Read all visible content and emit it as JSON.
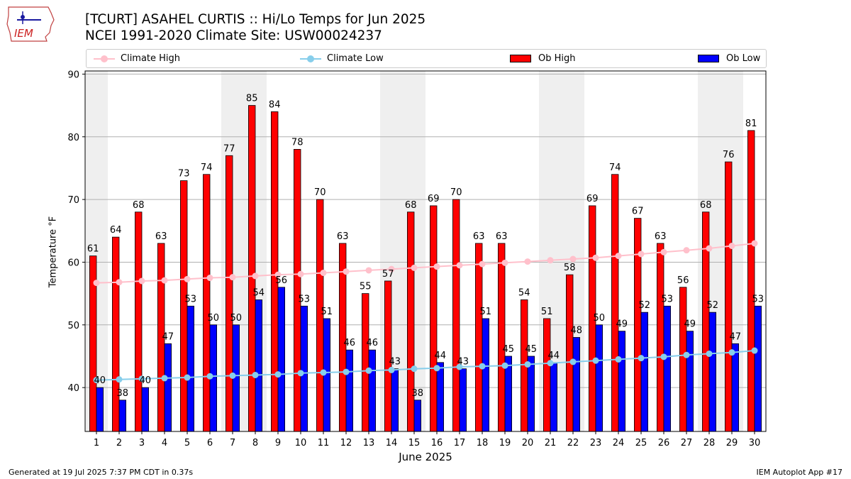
{
  "header": {
    "logo_text": "IEM",
    "title": "[TCURT] ASAHEL CURTIS  :: Hi/Lo Temps for Jun 2025",
    "subtitle": "NCEI 1991-2020 Climate Site: USW00024237"
  },
  "footer": {
    "generated": "Generated at 19 Jul 2025 7:37 PM CDT in 0.37s",
    "app": "IEM Autoplot App #17"
  },
  "legend": {
    "climate_high": "Climate High",
    "climate_low": "Climate Low",
    "ob_high": "Ob High",
    "ob_low": "Ob Low"
  },
  "colors": {
    "ob_high": "#ff0000",
    "ob_low": "#0000ff",
    "climate_high": "#ffc0cb",
    "climate_low": "#87ceeb",
    "weekend_shade": "#efefef",
    "grid": "#b0b0b0"
  },
  "chart_data": {
    "type": "bar",
    "xlabel": "June 2025",
    "ylabel": "Temperature °F",
    "ylim": [
      33,
      90.5
    ],
    "yticks": [
      40,
      50,
      60,
      70,
      80,
      90
    ],
    "grid": "horizontal",
    "legend_position": "top",
    "categories": [
      "1",
      "2",
      "3",
      "4",
      "5",
      "6",
      "7",
      "8",
      "9",
      "10",
      "11",
      "12",
      "13",
      "14",
      "15",
      "16",
      "17",
      "18",
      "19",
      "20",
      "21",
      "22",
      "23",
      "24",
      "25",
      "26",
      "27",
      "28",
      "29",
      "30"
    ],
    "weekend_days": [
      1,
      7,
      8,
      14,
      15,
      21,
      22,
      28,
      29
    ],
    "series": [
      {
        "name": "Ob High",
        "kind": "bar",
        "values": [
          61,
          64,
          68,
          63,
          73,
          74,
          77,
          85,
          84,
          78,
          70,
          63,
          55,
          57,
          68,
          69,
          70,
          63,
          63,
          54,
          51,
          58,
          69,
          74,
          67,
          63,
          56,
          68,
          76,
          81
        ]
      },
      {
        "name": "Ob Low",
        "kind": "bar",
        "values": [
          40,
          38,
          40,
          47,
          53,
          50,
          50,
          54,
          56,
          53,
          51,
          46,
          46,
          43,
          38,
          44,
          43,
          51,
          45,
          45,
          44,
          48,
          50,
          49,
          52,
          53,
          49,
          52,
          47,
          53
        ]
      },
      {
        "name": "Climate High",
        "kind": "line",
        "values": [
          56.7,
          56.8,
          57.0,
          57.1,
          57.3,
          57.5,
          57.6,
          57.8,
          58.0,
          58.1,
          58.3,
          58.5,
          58.7,
          58.9,
          59.1,
          59.3,
          59.5,
          59.7,
          59.9,
          60.1,
          60.3,
          60.5,
          60.7,
          61.0,
          61.3,
          61.6,
          61.9,
          62.2,
          62.6,
          63.0
        ]
      },
      {
        "name": "Climate Low",
        "kind": "line",
        "values": [
          41.2,
          41.3,
          41.4,
          41.5,
          41.6,
          41.8,
          41.9,
          42.0,
          42.1,
          42.3,
          42.4,
          42.5,
          42.7,
          42.8,
          43.0,
          43.1,
          43.3,
          43.4,
          43.5,
          43.7,
          43.9,
          44.1,
          44.3,
          44.5,
          44.7,
          44.9,
          45.2,
          45.4,
          45.6,
          45.9
        ]
      }
    ]
  }
}
